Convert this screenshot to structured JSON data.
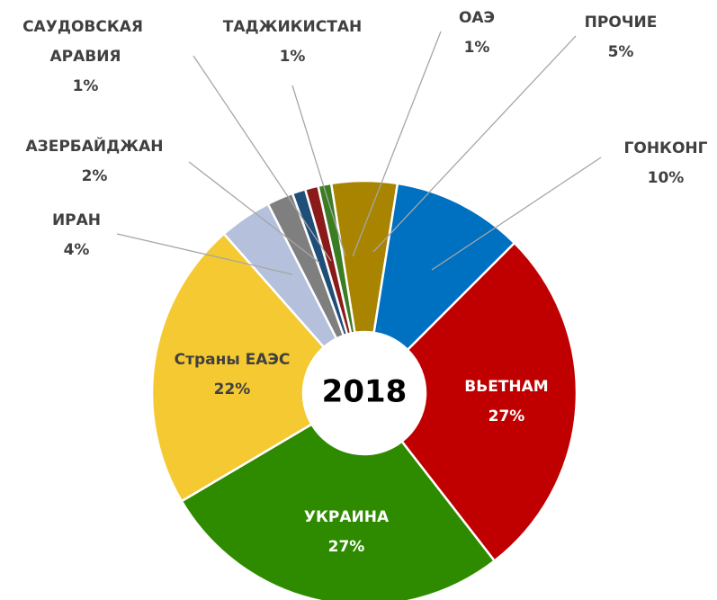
{
  "chart_data": {
    "type": "donut",
    "center_text": "2018",
    "categories": [
      "ПРОЧИЕ",
      "ГОНКОНГ",
      "ВЬЕТНАМ",
      "УКРАИНА",
      "Страны ЕАЭС",
      "ИРАН",
      "АЗЕРБАЙДЖАН",
      "САУДОВСКАЯ АРАВИЯ",
      "ТАДЖИКИСТАН",
      "ОАЭ"
    ],
    "values": [
      5,
      10,
      27,
      27,
      22,
      4,
      2,
      1,
      1,
      1
    ],
    "value_labels": [
      "5%",
      "10%",
      "27%",
      "27%",
      "22%",
      "4%",
      "2%",
      "1%",
      "1%",
      "1%"
    ],
    "colors": [
      "#a88400",
      "#0070c0",
      "#c00000",
      "#2e8b00",
      "#f4c932",
      "#b4c0dc",
      "#7f7f7f",
      "#1f4e79",
      "#8b1a1a",
      "#3a7d22"
    ]
  }
}
